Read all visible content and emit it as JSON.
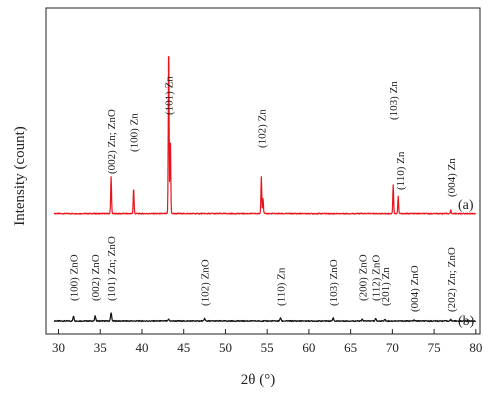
{
  "chart_data": {
    "type": "line",
    "xlabel": "2θ (°)",
    "ylabel": "Intensity (count)",
    "xlim": [
      28.5,
      80.5
    ],
    "xticks": [
      30,
      35,
      40,
      45,
      50,
      55,
      60,
      65,
      70,
      75,
      80
    ],
    "grid": false,
    "legend": "none",
    "series": [
      {
        "name": "(a)",
        "color": "#e8141c",
        "baseline": 0.02,
        "peaks": [
          {
            "x": 36.3,
            "h": 0.22
          },
          {
            "x": 39.0,
            "h": 0.15
          },
          {
            "x": 43.2,
            "h": 1.0
          },
          {
            "x": 43.4,
            "h": 0.45
          },
          {
            "x": 54.3,
            "h": 0.22
          },
          {
            "x": 54.5,
            "h": 0.09
          },
          {
            "x": 70.1,
            "h": 0.17
          },
          {
            "x": 70.7,
            "h": 0.1
          },
          {
            "x": 77.0,
            "h": 0.02
          }
        ],
        "annotations": [
          {
            "x": 36.3,
            "text": "(002) Zn; ZnO"
          },
          {
            "x": 39.0,
            "text": "(100) Zn"
          },
          {
            "x": 43.2,
            "text": "(101) Zn"
          },
          {
            "x": 54.3,
            "text": "(102) Zn"
          },
          {
            "x": 70.1,
            "text": "(103) Zn"
          },
          {
            "x": 70.9,
            "text": "(110) Zn"
          },
          {
            "x": 77.0,
            "text": "(004) Zn"
          }
        ]
      },
      {
        "name": "(b)",
        "color": "#111111",
        "baseline": 0.0,
        "peaks": [
          {
            "x": 31.8,
            "h": 0.03
          },
          {
            "x": 34.4,
            "h": 0.03
          },
          {
            "x": 36.3,
            "h": 0.05
          },
          {
            "x": 43.2,
            "h": 0.01
          },
          {
            "x": 47.5,
            "h": 0.015
          },
          {
            "x": 56.6,
            "h": 0.02
          },
          {
            "x": 62.9,
            "h": 0.02
          },
          {
            "x": 66.4,
            "h": 0.01
          },
          {
            "x": 68.0,
            "h": 0.015
          },
          {
            "x": 69.1,
            "h": 0.01
          },
          {
            "x": 72.6,
            "h": 0.005
          },
          {
            "x": 77.0,
            "h": 0.008
          }
        ],
        "annotations": [
          {
            "x": 31.8,
            "text": "(100) ZnO"
          },
          {
            "x": 34.4,
            "text": "(002) ZnO"
          },
          {
            "x": 36.3,
            "text": "(101) Zn; ZnO"
          },
          {
            "x": 47.5,
            "text": "(102) ZnO"
          },
          {
            "x": 56.6,
            "text": "(110) Zn"
          },
          {
            "x": 62.9,
            "text": "(103) ZnO"
          },
          {
            "x": 66.4,
            "text": "(200) ZnO"
          },
          {
            "x": 68.0,
            "text": "(112) ZnO"
          },
          {
            "x": 69.1,
            "text": "(201) Zn"
          },
          {
            "x": 72.6,
            "text": "(004) ZnO"
          },
          {
            "x": 77.0,
            "text": "(202) Zn; ZnO"
          }
        ]
      }
    ]
  }
}
